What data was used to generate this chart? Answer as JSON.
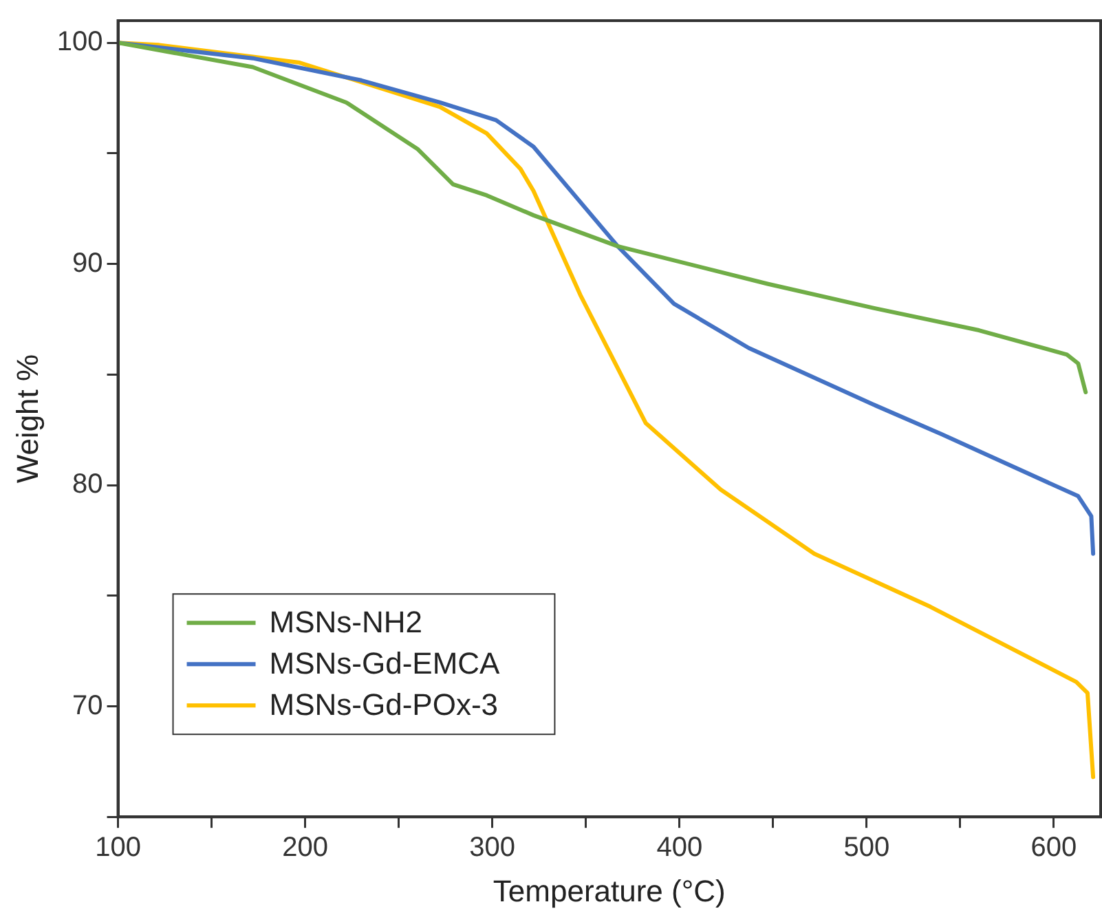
{
  "chart_data": {
    "type": "line",
    "xlabel": "Temperature (°C)",
    "ylabel": "Weight %",
    "xlim": [
      100,
      625
    ],
    "ylim": [
      65,
      101
    ],
    "xticks": [
      100,
      {
        "value": 150,
        "label": null
      },
      200,
      {
        "value": 250,
        "label": null
      },
      300,
      {
        "value": 350,
        "label": null
      },
      400,
      {
        "value": 450,
        "label": null
      },
      500,
      {
        "value": 550,
        "label": null
      },
      600
    ],
    "yticks": [
      {
        "value": 65,
        "label": null
      },
      70,
      {
        "value": 75,
        "label": null
      },
      80,
      {
        "value": 85,
        "label": null
      },
      90,
      {
        "value": 95,
        "label": null
      },
      100
    ],
    "grid": false,
    "legend": "bottom left",
    "marker": "none",
    "line_style": "solid",
    "series": [
      {
        "name": "MSNs-NH2",
        "color": "#70ad47",
        "x": [
          100,
          172,
          222,
          260,
          279,
          297,
          322,
          367,
          447,
          504,
          560,
          607,
          613,
          617
        ],
        "values": [
          100,
          98.9,
          97.3,
          95.2,
          93.6,
          93.1,
          92.2,
          90.8,
          89.1,
          88.0,
          87.0,
          85.9,
          85.5,
          84.2
        ]
      },
      {
        "name": "MSNs-Gd-EMCA",
        "color": "#4472c4",
        "x": [
          100,
          172,
          230,
          272,
          302,
          322,
          367,
          397,
          437,
          502,
          540,
          613,
          620,
          621
        ],
        "values": [
          100,
          99.3,
          98.3,
          97.3,
          96.5,
          95.3,
          90.8,
          88.2,
          86.2,
          83.7,
          82.3,
          79.5,
          78.6,
          76.9
        ]
      },
      {
        "name": "MSNs-Gd-POx-3",
        "color": "#ffc000",
        "x": [
          100,
          122,
          197,
          272,
          297,
          315,
          322,
          347,
          382,
          422,
          472,
          534,
          612,
          618,
          621
        ],
        "values": [
          100,
          99.9,
          99.1,
          97.1,
          95.9,
          94.3,
          93.3,
          88.6,
          82.8,
          79.8,
          76.9,
          74.5,
          71.1,
          70.6,
          66.8
        ]
      }
    ]
  }
}
